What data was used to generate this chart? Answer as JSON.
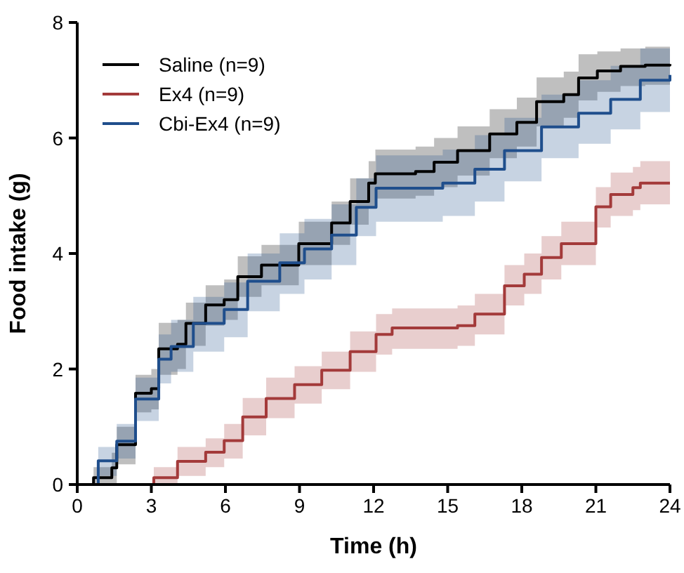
{
  "chart_data": {
    "type": "step",
    "xlabel": "Time (h)",
    "ylabel": "Food intake (g)",
    "xlim": [
      0,
      24
    ],
    "ylim": [
      0,
      8
    ],
    "xticks": [
      0,
      3,
      6,
      9,
      12,
      15,
      18,
      21,
      24
    ],
    "yticks": [
      0,
      2,
      4,
      6,
      8
    ],
    "grid": false,
    "legend": "top left",
    "marker": "none",
    "line_style": "solid",
    "series": [
      {
        "name": "Saline (n=9)",
        "color": "#000000",
        "x": [
          0,
          0.66,
          1.4,
          1.6,
          2.36,
          3.0,
          3.3,
          4.06,
          4.4,
          5.2,
          5.95,
          6.5,
          7.46,
          8.97,
          10.3,
          11.05,
          11.8,
          12.07,
          13.7,
          14.45,
          15.4,
          16.7,
          17.8,
          18.6,
          19.7,
          20.3,
          21.06,
          22,
          23,
          24
        ],
        "values": [
          0,
          0.12,
          0.29,
          0.69,
          1.58,
          1.66,
          2.35,
          2.43,
          2.79,
          3.11,
          3.2,
          3.6,
          3.8,
          4.17,
          4.53,
          4.9,
          5.22,
          5.38,
          5.42,
          5.58,
          5.78,
          6.07,
          6.27,
          6.63,
          6.75,
          7.04,
          7.16,
          7.24,
          7.26,
          7.28
        ],
        "lower": [
          0,
          0,
          0,
          0.35,
          1.25,
          1.3,
          1.9,
          2.0,
          2.4,
          2.75,
          2.85,
          3.25,
          3.45,
          3.8,
          4.15,
          4.5,
          4.8,
          4.95,
          5.0,
          5.15,
          5.35,
          5.65,
          5.85,
          6.2,
          6.35,
          6.65,
          6.8,
          6.9,
          6.92,
          6.95
        ],
        "upper": [
          0,
          0.3,
          0.55,
          1.0,
          1.9,
          2.0,
          2.8,
          2.85,
          3.15,
          3.45,
          3.55,
          3.95,
          4.15,
          4.55,
          4.9,
          5.3,
          5.6,
          5.8,
          5.85,
          6.0,
          6.2,
          6.5,
          6.7,
          7.05,
          7.15,
          7.45,
          7.5,
          7.55,
          7.58,
          7.6
        ]
      },
      {
        "name": "Ex4 (n=9)",
        "color": "#a33a3a",
        "x": [
          0,
          3.1,
          4.06,
          5.2,
          5.95,
          6.7,
          7.65,
          8.8,
          9.9,
          11.05,
          12.1,
          12.75,
          15.4,
          16.1,
          17.3,
          18.1,
          18.8,
          19.6,
          20.5,
          21,
          21.6,
          22.5,
          22.8,
          24
        ],
        "values": [
          0,
          0.12,
          0.4,
          0.56,
          0.76,
          1.17,
          1.49,
          1.73,
          1.98,
          2.3,
          2.6,
          2.71,
          2.75,
          2.95,
          3.44,
          3.64,
          3.93,
          4.17,
          4.17,
          4.81,
          5.02,
          5.14,
          5.22,
          5.22
        ],
        "lower": [
          0,
          0,
          0.15,
          0.3,
          0.45,
          0.85,
          1.15,
          1.4,
          1.65,
          1.95,
          2.25,
          2.35,
          2.4,
          2.6,
          3.1,
          3.3,
          3.55,
          3.8,
          3.8,
          4.45,
          4.65,
          4.75,
          4.85,
          4.85
        ],
        "upper": [
          0,
          0.3,
          0.65,
          0.8,
          1.05,
          1.5,
          1.85,
          2.05,
          2.3,
          2.65,
          2.95,
          3.05,
          3.1,
          3.3,
          3.8,
          4.0,
          4.3,
          4.55,
          4.55,
          5.15,
          5.4,
          5.5,
          5.6,
          5.6
        ]
      },
      {
        "name": "Cbi-Ex4 (n=9)",
        "color": "#1f4e8c",
        "x": [
          0,
          0.85,
          1.6,
          2.36,
          3.3,
          3.8,
          4.7,
          5.95,
          6.9,
          8.2,
          9.2,
          10.3,
          11.3,
          12.1,
          14.8,
          16.1,
          17.3,
          18.8,
          20.3,
          21.6,
          22.8,
          24
        ],
        "values": [
          0,
          0.41,
          0.75,
          1.48,
          2.17,
          2.39,
          2.79,
          3.03,
          3.52,
          3.84,
          4.08,
          4.32,
          4.8,
          5.13,
          5.22,
          5.46,
          5.78,
          6.19,
          6.43,
          6.67,
          7.0,
          7.09
        ],
        "lower": [
          0,
          0.15,
          0.45,
          1.1,
          1.75,
          1.95,
          2.3,
          2.55,
          3.0,
          3.3,
          3.55,
          3.8,
          4.3,
          4.55,
          4.65,
          4.9,
          5.25,
          5.65,
          5.9,
          6.15,
          6.45,
          6.5
        ],
        "upper": [
          0,
          0.65,
          1.05,
          1.85,
          2.6,
          2.85,
          3.25,
          3.5,
          4.0,
          4.35,
          4.6,
          4.85,
          5.3,
          5.7,
          5.8,
          6.05,
          6.35,
          6.75,
          7.0,
          7.25,
          7.55,
          7.65
        ]
      }
    ]
  }
}
